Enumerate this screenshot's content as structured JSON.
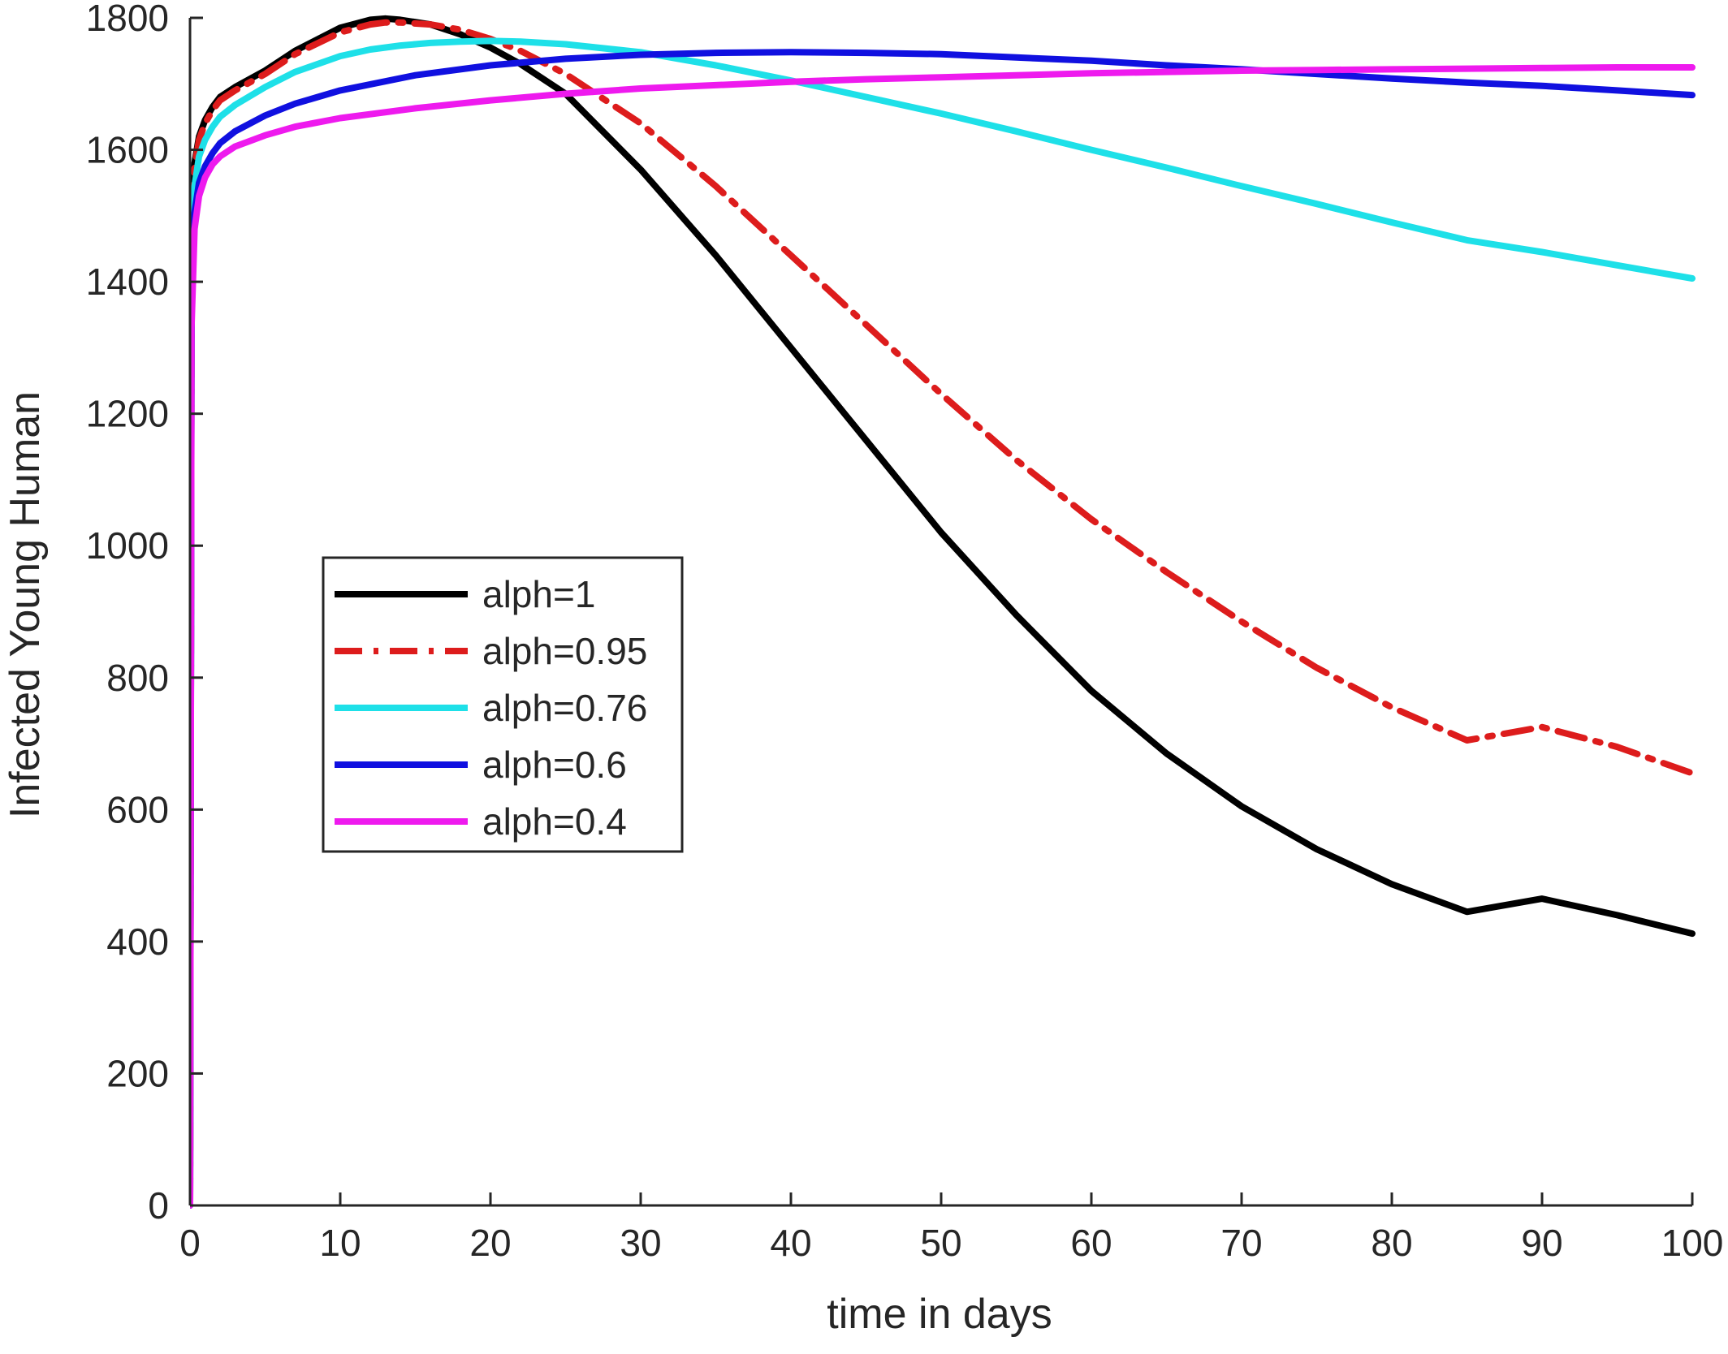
{
  "chart_data": {
    "type": "line",
    "xlabel": "time in days",
    "ylabel": "Infected Young Human",
    "xlim": [
      0,
      100
    ],
    "ylim": [
      0,
      1800
    ],
    "xticks": [
      0,
      10,
      20,
      30,
      40,
      50,
      60,
      70,
      80,
      90,
      100
    ],
    "yticks": [
      0,
      200,
      400,
      600,
      800,
      1000,
      1200,
      1400,
      1600,
      1800
    ],
    "xtick_labels": [
      "0",
      "10",
      "20",
      "30",
      "40",
      "50",
      "60",
      "70",
      "80",
      "90",
      "100"
    ],
    "ytick_labels": [
      "0",
      "200",
      "400",
      "600",
      "800",
      "1000",
      "1200",
      "1400",
      "1600",
      "1800"
    ],
    "grid": false,
    "legend_position": "left-middle",
    "series": [
      {
        "name": "alph=1",
        "color": "#000000",
        "dash": "solid",
        "x": [
          0,
          0.1,
          0.3,
          0.6,
          1,
          1.5,
          2,
          3,
          5,
          7,
          10,
          12,
          13,
          14,
          16,
          18,
          20,
          22,
          25,
          30,
          35,
          40,
          45,
          50,
          55,
          60,
          65,
          70,
          75,
          80,
          85,
          90,
          95,
          100
        ],
        "y": [
          0,
          1400,
          1580,
          1620,
          1645,
          1665,
          1680,
          1695,
          1720,
          1750,
          1785,
          1797,
          1799,
          1797,
          1790,
          1775,
          1755,
          1730,
          1685,
          1570,
          1440,
          1300,
          1160,
          1020,
          895,
          780,
          685,
          605,
          540,
          487,
          445,
          465,
          440,
          412
        ]
      },
      {
        "name": "alph=0.95",
        "color": "#dd1c1c",
        "dash": "dashdot",
        "x": [
          0,
          0.1,
          0.3,
          0.6,
          1,
          1.5,
          2,
          3,
          5,
          7,
          10,
          12,
          13,
          14,
          16,
          18,
          20,
          22,
          25,
          30,
          35,
          40,
          45,
          50,
          55,
          60,
          65,
          70,
          75,
          80,
          85,
          90,
          95,
          100
        ],
        "y": [
          0,
          1400,
          1575,
          1615,
          1640,
          1660,
          1675,
          1690,
          1715,
          1745,
          1778,
          1790,
          1793,
          1793,
          1790,
          1782,
          1768,
          1750,
          1715,
          1640,
          1545,
          1440,
          1335,
          1230,
          1130,
          1040,
          960,
          885,
          815,
          755,
          705,
          725,
          695,
          655
        ]
      },
      {
        "name": "alph=0.76",
        "color": "#1ee0e8",
        "dash": "solid",
        "x": [
          0,
          0.1,
          0.3,
          0.6,
          1,
          1.5,
          2,
          3,
          5,
          7,
          10,
          12,
          14,
          16,
          18,
          20,
          22,
          25,
          30,
          35,
          40,
          45,
          50,
          55,
          60,
          65,
          70,
          75,
          80,
          85,
          90,
          95,
          100
        ],
        "y": [
          0,
          1380,
          1545,
          1590,
          1615,
          1635,
          1650,
          1668,
          1695,
          1718,
          1742,
          1752,
          1758,
          1762,
          1764,
          1765,
          1764,
          1760,
          1748,
          1728,
          1705,
          1680,
          1655,
          1628,
          1600,
          1573,
          1545,
          1518,
          1490,
          1463,
          1445,
          1425,
          1405
        ]
      },
      {
        "name": "alph=0.6",
        "color": "#1010e0",
        "dash": "solid",
        "x": [
          0,
          0.1,
          0.3,
          0.6,
          1,
          1.5,
          2,
          3,
          5,
          7,
          10,
          15,
          20,
          25,
          30,
          35,
          40,
          45,
          50,
          55,
          60,
          65,
          70,
          75,
          80,
          85,
          90,
          95,
          100
        ],
        "y": [
          0,
          1350,
          1505,
          1550,
          1575,
          1595,
          1610,
          1628,
          1652,
          1670,
          1690,
          1713,
          1728,
          1738,
          1744,
          1747,
          1748,
          1747,
          1745,
          1740,
          1735,
          1728,
          1722,
          1715,
          1708,
          1702,
          1697,
          1690,
          1683
        ]
      },
      {
        "name": "alph=0.4",
        "color": "#ee1aee",
        "dash": "solid",
        "x": [
          0,
          0.1,
          0.3,
          0.6,
          1,
          1.5,
          2,
          3,
          5,
          7,
          10,
          15,
          20,
          25,
          30,
          35,
          40,
          45,
          50,
          55,
          60,
          65,
          70,
          75,
          80,
          85,
          90,
          95,
          100
        ],
        "y": [
          0,
          1330,
          1480,
          1530,
          1558,
          1578,
          1590,
          1605,
          1622,
          1635,
          1648,
          1663,
          1675,
          1685,
          1693,
          1698,
          1703,
          1707,
          1710,
          1713,
          1716,
          1718,
          1720,
          1721,
          1722,
          1723,
          1724,
          1725,
          1725
        ]
      }
    ]
  }
}
